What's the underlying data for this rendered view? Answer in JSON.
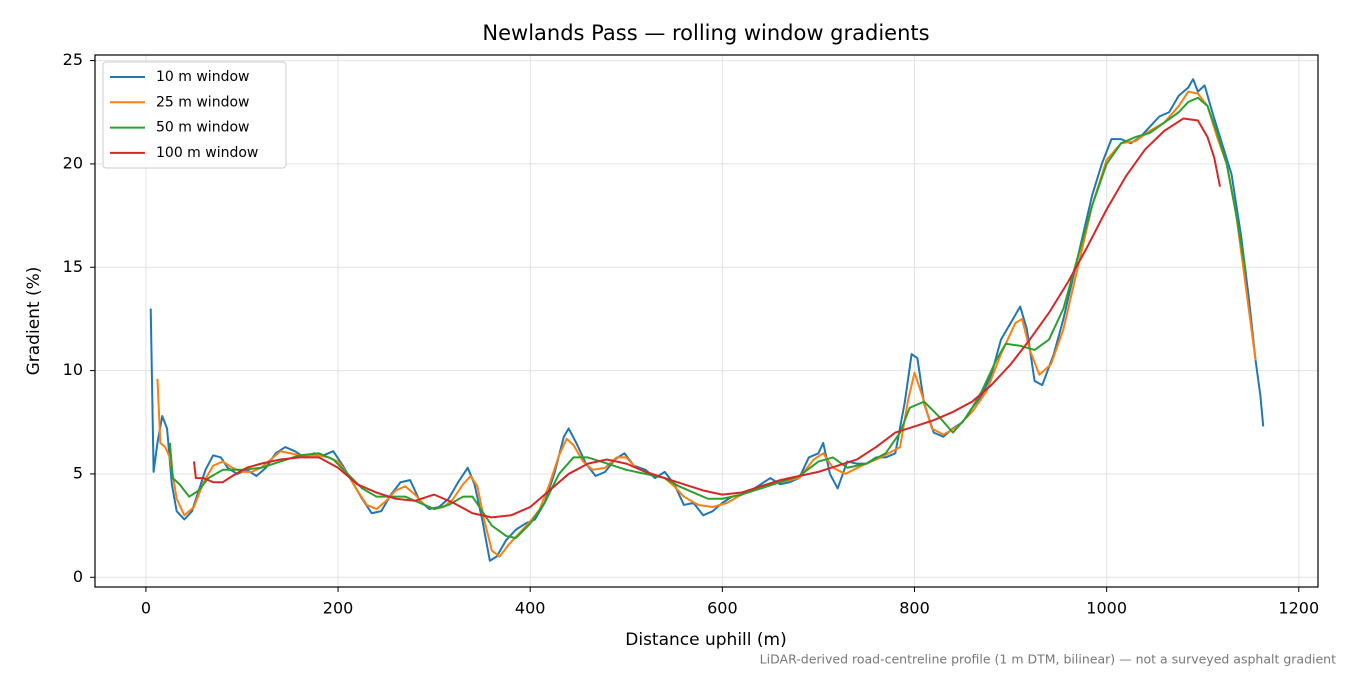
{
  "chart_data": {
    "type": "line",
    "title": "Newlands Pass — rolling window gradients",
    "x_label": "Distance uphill (m)",
    "y_label": "Gradient (%)",
    "note": "LiDAR-derived road-centreline profile (1 m DTM, bilinear) — not a surveyed asphalt gradient",
    "xlim": [
      -53,
      1220
    ],
    "ylim": [
      -0.47,
      25.27
    ],
    "xticks": [
      0,
      200,
      400,
      600,
      800,
      1000,
      1200
    ],
    "yticks": [
      0,
      5,
      10,
      15,
      20,
      25
    ],
    "grid": true,
    "legend": "upper left",
    "series": [
      {
        "name": "10 m window",
        "color": "#1f77b4",
        "x": [
          5,
          8,
          12,
          17,
          22,
          27,
          32,
          40,
          48,
          55,
          62,
          70,
          78,
          85,
          95,
          105,
          115,
          125,
          135,
          145,
          155,
          165,
          175,
          185,
          195,
          205,
          215,
          225,
          235,
          245,
          255,
          265,
          275,
          285,
          295,
          305,
          315,
          325,
          335,
          342,
          350,
          358,
          365,
          375,
          385,
          395,
          405,
          415,
          425,
          435,
          440,
          448,
          458,
          468,
          478,
          488,
          498,
          508,
          520,
          530,
          540,
          550,
          560,
          570,
          580,
          590,
          600,
          610,
          620,
          630,
          640,
          650,
          660,
          670,
          680,
          690,
          700,
          705,
          712,
          720,
          730,
          740,
          750,
          760,
          770,
          780,
          790,
          797,
          803,
          810,
          820,
          830,
          840,
          850,
          860,
          870,
          880,
          890,
          900,
          910,
          917,
          925,
          933,
          945,
          955,
          965,
          975,
          985,
          995,
          1005,
          1015,
          1025,
          1035,
          1045,
          1055,
          1065,
          1075,
          1085,
          1090,
          1095,
          1102,
          1110,
          1120,
          1130,
          1140,
          1148,
          1155,
          1160,
          1163
        ],
        "values": [
          13.0,
          5.1,
          6.5,
          7.8,
          7.2,
          4.5,
          3.2,
          2.8,
          3.2,
          4.2,
          5.2,
          5.9,
          5.8,
          5.3,
          5.0,
          5.2,
          4.9,
          5.3,
          6.0,
          6.3,
          6.1,
          5.8,
          6.0,
          5.9,
          6.1,
          5.4,
          4.6,
          3.8,
          3.1,
          3.2,
          4.0,
          4.6,
          4.7,
          3.7,
          3.3,
          3.4,
          3.8,
          4.6,
          5.3,
          4.5,
          2.8,
          0.8,
          1.0,
          1.8,
          2.3,
          2.6,
          2.8,
          3.6,
          5.0,
          6.8,
          7.2,
          6.5,
          5.5,
          4.9,
          5.1,
          5.7,
          6.0,
          5.4,
          5.2,
          4.8,
          5.1,
          4.5,
          3.5,
          3.6,
          3.0,
          3.2,
          3.6,
          3.9,
          4.0,
          4.2,
          4.5,
          4.8,
          4.5,
          4.6,
          4.8,
          5.8,
          6.0,
          6.5,
          5.0,
          4.3,
          5.6,
          5.5,
          5.5,
          5.8,
          5.8,
          6.0,
          8.5,
          10.8,
          10.6,
          8.4,
          7.0,
          6.8,
          7.2,
          7.5,
          8.2,
          8.8,
          9.8,
          11.5,
          12.3,
          13.1,
          12.0,
          9.5,
          9.3,
          10.8,
          12.5,
          14.5,
          16.5,
          18.5,
          20.0,
          21.2,
          21.2,
          21.0,
          21.3,
          21.8,
          22.3,
          22.5,
          23.3,
          23.7,
          24.1,
          23.5,
          23.8,
          22.5,
          21.0,
          19.5,
          16.5,
          13.5,
          10.5,
          8.8,
          7.3
        ]
      },
      {
        "name": "25 m window",
        "color": "#ff7f0e",
        "x": [
          12,
          15,
          20,
          25,
          32,
          40,
          50,
          60,
          70,
          80,
          90,
          100,
          110,
          120,
          130,
          140,
          150,
          160,
          170,
          180,
          190,
          200,
          210,
          220,
          230,
          240,
          250,
          260,
          270,
          280,
          290,
          300,
          310,
          320,
          330,
          338,
          345,
          352,
          360,
          368,
          378,
          390,
          400,
          410,
          420,
          430,
          438,
          445,
          455,
          465,
          478,
          490,
          500,
          510,
          525,
          540,
          550,
          560,
          575,
          590,
          605,
          620,
          640,
          660,
          680,
          695,
          705,
          715,
          728,
          745,
          765,
          785,
          793,
          800,
          808,
          818,
          830,
          845,
          860,
          875,
          890,
          905,
          912,
          920,
          930,
          942,
          955,
          970,
          985,
          1000,
          1015,
          1030,
          1045,
          1060,
          1075,
          1085,
          1095,
          1105,
          1115,
          1125,
          1135,
          1145,
          1155
        ],
        "values": [
          9.6,
          6.5,
          6.3,
          5.8,
          3.8,
          3.0,
          3.4,
          4.6,
          5.4,
          5.6,
          5.3,
          5.1,
          5.1,
          5.3,
          5.7,
          6.1,
          6.0,
          5.9,
          5.9,
          5.9,
          5.8,
          5.6,
          5.0,
          4.2,
          3.5,
          3.3,
          3.7,
          4.2,
          4.4,
          4.0,
          3.5,
          3.3,
          3.4,
          3.8,
          4.5,
          4.9,
          4.4,
          2.8,
          1.3,
          1.0,
          1.6,
          2.2,
          2.7,
          3.3,
          4.5,
          5.9,
          6.7,
          6.4,
          5.6,
          5.2,
          5.3,
          5.8,
          5.8,
          5.3,
          5.0,
          4.8,
          4.4,
          3.9,
          3.5,
          3.4,
          3.6,
          4.0,
          4.4,
          4.6,
          4.8,
          5.7,
          6.0,
          5.3,
          5.0,
          5.4,
          5.8,
          6.3,
          8.5,
          9.9,
          8.8,
          7.2,
          6.9,
          7.3,
          8.0,
          9.0,
          10.8,
          12.3,
          12.5,
          11.0,
          9.8,
          10.3,
          12.0,
          15.0,
          18.0,
          20.2,
          21.0,
          21.1,
          21.6,
          22.0,
          22.8,
          23.5,
          23.4,
          22.8,
          21.3,
          20.0,
          17.5,
          14.0,
          10.5
        ]
      },
      {
        "name": "50 m window",
        "color": "#2ca02c",
        "x": [
          25,
          28,
          35,
          45,
          55,
          65,
          80,
          100,
          120,
          140,
          160,
          180,
          195,
          210,
          225,
          240,
          255,
          270,
          285,
          300,
          315,
          330,
          340,
          350,
          360,
          375,
          385,
          400,
          415,
          430,
          445,
          460,
          480,
          500,
          520,
          540,
          555,
          570,
          585,
          600,
          620,
          640,
          660,
          680,
          700,
          715,
          730,
          750,
          770,
          785,
          795,
          810,
          825,
          840,
          855,
          870,
          885,
          895,
          910,
          925,
          940,
          955,
          970,
          985,
          1000,
          1015,
          1030,
          1045,
          1060,
          1075,
          1085,
          1095,
          1105,
          1115,
          1125,
          1135,
          1145
        ],
        "values": [
          6.5,
          4.8,
          4.5,
          3.9,
          4.2,
          4.8,
          5.2,
          5.2,
          5.3,
          5.6,
          5.9,
          6.0,
          5.7,
          5.0,
          4.3,
          3.9,
          3.9,
          3.9,
          3.6,
          3.3,
          3.5,
          3.9,
          3.9,
          3.2,
          2.5,
          2.0,
          1.9,
          2.6,
          3.6,
          5.0,
          5.8,
          5.8,
          5.5,
          5.2,
          5.0,
          4.8,
          4.4,
          4.1,
          3.8,
          3.8,
          4.0,
          4.3,
          4.6,
          4.9,
          5.6,
          5.8,
          5.3,
          5.5,
          6.0,
          7.0,
          8.2,
          8.5,
          7.8,
          7.0,
          7.8,
          9.0,
          10.5,
          11.3,
          11.2,
          11.0,
          11.5,
          13.0,
          15.5,
          18.0,
          20.0,
          21.0,
          21.3,
          21.5,
          22.0,
          22.5,
          23.0,
          23.2,
          22.8,
          21.5,
          20.0,
          17.5,
          14.7
        ]
      },
      {
        "name": "100 m window",
        "color": "#d62728",
        "x": [
          50,
          52,
          60,
          70,
          80,
          90,
          105,
          120,
          140,
          160,
          180,
          200,
          220,
          240,
          260,
          280,
          300,
          320,
          340,
          360,
          380,
          400,
          420,
          440,
          460,
          480,
          500,
          520,
          540,
          560,
          580,
          600,
          620,
          640,
          660,
          680,
          700,
          720,
          740,
          760,
          780,
          800,
          820,
          840,
          860,
          880,
          900,
          920,
          940,
          960,
          980,
          1000,
          1020,
          1040,
          1060,
          1080,
          1095,
          1105,
          1112,
          1118
        ],
        "values": [
          5.6,
          4.8,
          4.8,
          4.6,
          4.6,
          4.9,
          5.3,
          5.5,
          5.7,
          5.8,
          5.8,
          5.3,
          4.5,
          4.1,
          3.8,
          3.7,
          4.0,
          3.6,
          3.1,
          2.9,
          3.0,
          3.4,
          4.2,
          5.0,
          5.5,
          5.7,
          5.5,
          5.1,
          4.8,
          4.5,
          4.2,
          4.0,
          4.1,
          4.4,
          4.7,
          4.9,
          5.1,
          5.4,
          5.7,
          6.3,
          7.0,
          7.3,
          7.6,
          8.0,
          8.5,
          9.3,
          10.3,
          11.5,
          12.8,
          14.3,
          16.0,
          17.8,
          19.4,
          20.7,
          21.6,
          22.2,
          22.1,
          21.3,
          20.3,
          18.9
        ]
      }
    ]
  }
}
